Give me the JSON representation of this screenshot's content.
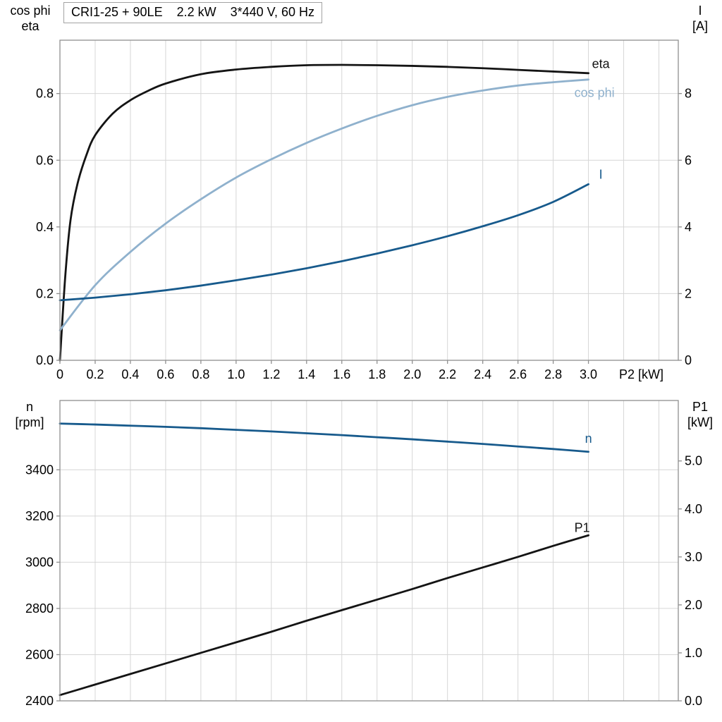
{
  "header": {
    "model": "CRI1-25 + 90LE",
    "power": "2.2 kW",
    "supply": "3*440 V, 60 Hz"
  },
  "colors": {
    "black": "#141414",
    "dark_blue": "#175a8c",
    "light_blue": "#8fb1cd",
    "grid": "#d6d6d6",
    "axis": "#8f8f8f"
  },
  "chart_data": [
    {
      "type": "line",
      "title": "CRI1-25 + 90LE 2.2 kW 3*440 V, 60 Hz",
      "xlabel": "P2 [kW]",
      "xlim": [
        0,
        3.51
      ],
      "x_grid_step": 0.2,
      "x_tick_values": [
        0,
        0.2,
        0.4,
        0.6,
        0.8,
        1.0,
        1.2,
        1.4,
        1.6,
        1.8,
        2.0,
        2.2,
        2.4,
        2.6,
        2.8,
        3.0
      ],
      "x_tick_labels": [
        "0",
        "0.2",
        "0.4",
        "0.6",
        "0.8",
        "1.0",
        "1.2",
        "1.4",
        "1.6",
        "1.8",
        "2.0",
        "2.2",
        "2.4",
        "2.6",
        "2.8",
        "3.0"
      ],
      "left_axis": {
        "label_lines": [
          "cos phi",
          "eta"
        ],
        "range": [
          0,
          0.96
        ],
        "tick_values": [
          0,
          0.2,
          0.4,
          0.6,
          0.8
        ],
        "tick_labels": [
          "0.0",
          "0.2",
          "0.4",
          "0.6",
          "0.8"
        ]
      },
      "right_axis": {
        "label_lines": [
          "I",
          "[A]"
        ],
        "range": [
          0,
          9.6
        ],
        "tick_values": [
          0,
          2,
          4,
          6,
          8
        ],
        "tick_labels": [
          "0",
          "2",
          "4",
          "6",
          "8"
        ]
      },
      "series": [
        {
          "name": "eta",
          "label": "eta",
          "axis": "left",
          "color_key": "black",
          "label_at": {
            "x": 3.02,
            "y": 0.876
          },
          "x": [
            0,
            0.03,
            0.06,
            0.1,
            0.15,
            0.2,
            0.3,
            0.4,
            0.5,
            0.6,
            0.8,
            1.0,
            1.2,
            1.4,
            1.6,
            1.8,
            2.0,
            2.2,
            2.4,
            2.6,
            2.8,
            3.0
          ],
          "y": [
            0,
            0.25,
            0.42,
            0.53,
            0.615,
            0.675,
            0.74,
            0.78,
            0.808,
            0.83,
            0.858,
            0.872,
            0.88,
            0.885,
            0.886,
            0.885,
            0.883,
            0.88,
            0.876,
            0.871,
            0.866,
            0.861
          ]
        },
        {
          "name": "cos_phi",
          "label": "cos phi",
          "axis": "left",
          "color_key": "light_blue",
          "label_at": {
            "x": 2.92,
            "y": 0.79
          },
          "x": [
            0,
            0.2,
            0.4,
            0.6,
            0.8,
            1.0,
            1.2,
            1.4,
            1.6,
            1.8,
            2.0,
            2.2,
            2.4,
            2.6,
            2.8,
            3.0
          ],
          "y": [
            0.09,
            0.225,
            0.325,
            0.41,
            0.483,
            0.548,
            0.603,
            0.652,
            0.695,
            0.733,
            0.765,
            0.79,
            0.809,
            0.824,
            0.834,
            0.842
          ]
        },
        {
          "name": "current",
          "label": "I",
          "axis": "right",
          "color_key": "dark_blue",
          "label_at": {
            "x": 3.06,
            "y": 5.45
          },
          "x": [
            0,
            0.2,
            0.4,
            0.6,
            0.8,
            1.0,
            1.2,
            1.4,
            1.6,
            1.8,
            2.0,
            2.2,
            2.4,
            2.6,
            2.8,
            3.0
          ],
          "y": [
            1.8,
            1.88,
            1.98,
            2.1,
            2.24,
            2.4,
            2.57,
            2.76,
            2.97,
            3.2,
            3.45,
            3.72,
            4.02,
            4.35,
            4.75,
            5.28
          ]
        }
      ]
    },
    {
      "type": "line",
      "title": "",
      "xlabel": "",
      "xlim": [
        0,
        3.51
      ],
      "x_grid_step": 0.2,
      "x_tick_values": [],
      "x_tick_labels": [],
      "left_axis": {
        "label_lines": [
          "n",
          "[rpm]"
        ],
        "range": [
          2400,
          3700
        ],
        "tick_values": [
          2400,
          2600,
          2800,
          3000,
          3200,
          3400
        ],
        "tick_labels": [
          "2400",
          "2600",
          "2800",
          "3000",
          "3200",
          "3400"
        ]
      },
      "right_axis": {
        "label_lines": [
          "P1",
          "[kW]"
        ],
        "range": [
          0,
          6.26
        ],
        "tick_values": [
          0,
          1,
          2,
          3,
          4,
          5
        ],
        "tick_labels": [
          "0.0",
          "1.0",
          "2.0",
          "3.0",
          "4.0",
          "5.0"
        ]
      },
      "series": [
        {
          "name": "n",
          "label": "n",
          "axis": "left",
          "color_key": "dark_blue",
          "label_at": {
            "x": 2.98,
            "y": 3517
          },
          "x": [
            0,
            0.2,
            0.4,
            0.6,
            0.8,
            1.0,
            1.2,
            1.4,
            1.6,
            1.8,
            2.0,
            2.2,
            2.4,
            2.6,
            2.8,
            3.0
          ],
          "y": [
            3600,
            3596,
            3591,
            3586,
            3580,
            3573,
            3566,
            3558,
            3550,
            3541,
            3532,
            3522,
            3512,
            3501,
            3490,
            3478
          ]
        },
        {
          "name": "P1",
          "label": "P1",
          "axis": "right",
          "color_key": "black",
          "label_at": {
            "x": 2.92,
            "y": 3.52
          },
          "x": [
            0,
            0.2,
            0.4,
            0.6,
            0.8,
            1.0,
            1.2,
            1.4,
            1.6,
            1.8,
            2.0,
            2.2,
            2.4,
            2.6,
            2.8,
            3.0
          ],
          "y": [
            0.12,
            0.34,
            0.56,
            0.78,
            1.0,
            1.22,
            1.44,
            1.67,
            1.89,
            2.11,
            2.33,
            2.56,
            2.78,
            3.0,
            3.23,
            3.45
          ]
        }
      ]
    }
  ]
}
